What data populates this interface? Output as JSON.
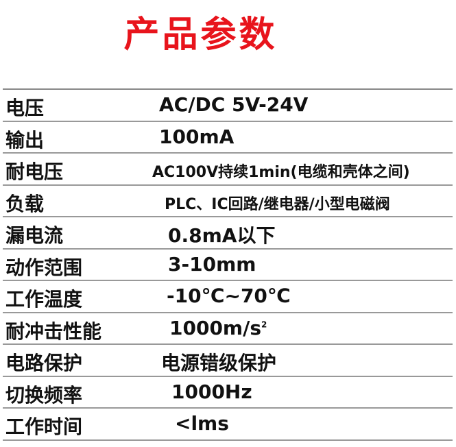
{
  "title": "产品参数",
  "specs": [
    {
      "label": "电压",
      "value": "AC/DC 5V-24V"
    },
    {
      "label": "输出",
      "value": "100mA"
    },
    {
      "label": "耐电压",
      "value": "AC100V持续1min(电缆和壳体之间)"
    },
    {
      "label": "负载",
      "value": "PLC、IC回路/继电器/小型电磁阀"
    },
    {
      "label": "漏电流",
      "value": "0.8mA以下"
    },
    {
      "label": "动作范围",
      "value": "3-10mm"
    },
    {
      "label": "工作温度",
      "value": "-10℃~70℃"
    },
    {
      "label": "耐冲击性能",
      "value": "1000m/s",
      "superscript": "2"
    },
    {
      "label": "电路保护",
      "value": "电源错级保护"
    },
    {
      "label": "切换频率",
      "value": "1000Hz"
    },
    {
      "label": "工作时间",
      "value": "<lms"
    }
  ],
  "colors": {
    "title": "#e8141c",
    "text": "#111111",
    "rule": "#999999"
  }
}
